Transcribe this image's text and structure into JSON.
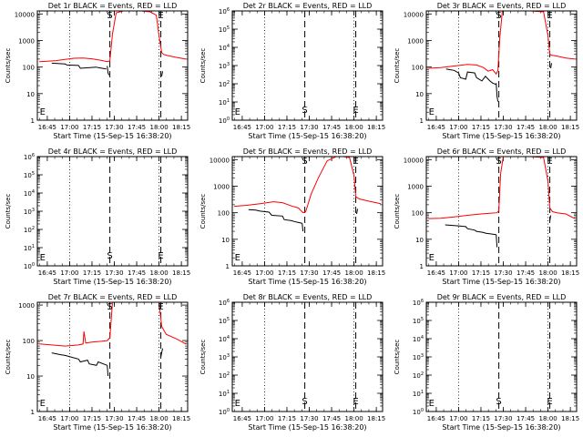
{
  "colors": {
    "events": "#000000",
    "lld": "#ff0000",
    "axes": "#000000",
    "background": "#ffffff"
  },
  "xlabel": "Start Time (15-Sep-15 16:38:20)",
  "ylabel": "Counts/sec",
  "chart_data": [
    {
      "type": "line",
      "title": "Det 1r BLACK = Events, RED = LLD",
      "log_scale": true,
      "ylim": [
        1,
        13000
      ],
      "y_tick_labels": [
        "1",
        "10",
        "100",
        "1000",
        "10000"
      ],
      "y_tick_values": [
        1,
        10,
        100,
        1000,
        10000
      ],
      "x_tick_labels": [
        "16:45",
        "17:00",
        "17:15",
        "17:30",
        "17:45",
        "18:00",
        "18:15"
      ],
      "x_tick_values": [
        16.75,
        17.0,
        17.25,
        17.5,
        17.75,
        18.0,
        18.25
      ],
      "xlim": [
        16.639,
        18.32
      ],
      "dotted_vlines": [
        17.0,
        18.0
      ],
      "dashed_vlines": [
        17.45,
        18.02
      ],
      "markers": [
        {
          "text": "S",
          "x": 17.45
        },
        {
          "text": "E",
          "x": 18.02
        },
        {
          "text": "E",
          "x": 16.655
        }
      ],
      "series": [
        {
          "color": "#ff0000",
          "x": [
            16.66,
            16.75,
            16.85,
            16.95,
            17.05,
            17.15,
            17.25,
            17.35,
            17.42,
            17.45,
            17.48,
            17.52,
            17.6,
            17.7,
            17.8,
            17.9,
            17.97,
            18.0,
            18.03,
            18.05,
            18.1,
            18.2,
            18.3
          ],
          "y": [
            160,
            165,
            175,
            195,
            215,
            220,
            205,
            180,
            160,
            170,
            1800,
            11000,
            13000,
            13000,
            13000,
            12000,
            9000,
            1500,
            350,
            300,
            270,
            230,
            200
          ]
        },
        {
          "color": "#000000",
          "x": [
            16.8,
            16.95,
            16.97,
            17.1,
            17.12,
            17.3,
            17.32,
            17.41
          ],
          "y": [
            140,
            130,
            120,
            115,
            90,
            100,
            95,
            85
          ]
        },
        {
          "color": "#000000",
          "x": [
            17.42,
            17.43,
            17.44
          ],
          "y": [
            110,
            60,
            50
          ]
        },
        {
          "color": "#000000",
          "x": [
            18.03,
            18.04
          ],
          "y": [
            45,
            70
          ]
        }
      ]
    },
    {
      "type": "line",
      "title": "Det 2r BLACK = Events, RED = LLD",
      "log_scale": true,
      "ylim": [
        1,
        1000000
      ],
      "y_tick_labels": [
        "10^0",
        "10^1",
        "10^2",
        "10^3",
        "10^4",
        "10^5",
        "10^6"
      ],
      "y_tick_values": [
        1,
        10,
        100,
        1000,
        10000,
        100000,
        1000000
      ],
      "x_tick_labels": [
        "16:45",
        "17:00",
        "17:15",
        "17:30",
        "17:45",
        "18:00",
        "18:15"
      ],
      "x_tick_values": [
        16.75,
        17.0,
        17.25,
        17.5,
        17.75,
        18.0,
        18.25
      ],
      "xlim": [
        16.639,
        18.32
      ],
      "dotted_vlines": [
        17.0,
        18.0
      ],
      "dashed_vlines": [
        17.45,
        18.02
      ],
      "markers": [
        {
          "text": "S",
          "x": 17.45
        },
        {
          "text": "E",
          "x": 18.02
        },
        {
          "text": "E",
          "x": 16.655
        }
      ],
      "series": []
    },
    {
      "type": "line",
      "title": "Det 3r BLACK = Events, RED = LLD",
      "log_scale": true,
      "ylim": [
        1,
        13000
      ],
      "y_tick_labels": [
        "1",
        "10",
        "100",
        "1000",
        "10000"
      ],
      "y_tick_values": [
        1,
        10,
        100,
        1000,
        10000
      ],
      "x_tick_labels": [
        "16:45",
        "17:00",
        "17:15",
        "17:30",
        "17:45",
        "18:00",
        "18:15"
      ],
      "x_tick_values": [
        16.75,
        17.0,
        17.25,
        17.5,
        17.75,
        18.0,
        18.25
      ],
      "xlim": [
        16.639,
        18.32
      ],
      "dotted_vlines": [
        17.0,
        18.0
      ],
      "dashed_vlines": [
        17.45,
        18.02
      ],
      "markers": [
        {
          "text": "S",
          "x": 17.45
        },
        {
          "text": "E",
          "x": 18.02
        },
        {
          "text": "E",
          "x": 16.655
        }
      ],
      "series": [
        {
          "color": "#ff0000",
          "x": [
            16.66,
            16.8,
            16.95,
            17.1,
            17.2,
            17.28,
            17.33,
            17.38,
            17.42,
            17.44,
            17.46,
            17.49,
            17.6,
            17.8,
            17.95,
            18.0,
            18.02,
            18.04,
            18.1,
            18.2,
            18.3
          ],
          "y": [
            90,
            95,
            110,
            125,
            120,
            95,
            70,
            80,
            55,
            75,
            1200,
            13000,
            13000,
            13000,
            12000,
            1500,
            300,
            280,
            260,
            220,
            200
          ]
        },
        {
          "color": "#000000",
          "x": [
            16.86,
            16.9,
            16.95,
            17.0,
            17.02,
            17.08,
            17.1,
            17.18,
            17.2,
            17.26,
            17.3,
            17.35,
            17.38,
            17.42
          ],
          "y": [
            85,
            80,
            75,
            60,
            40,
            35,
            65,
            60,
            40,
            30,
            45,
            30,
            25,
            22
          ]
        },
        {
          "color": "#000000",
          "x": [
            17.42,
            17.43,
            17.44
          ],
          "y": [
            25,
            8,
            5
          ]
        },
        {
          "color": "#000000",
          "x": [
            18.03,
            18.04
          ],
          "y": [
            90,
            140
          ]
        }
      ]
    },
    {
      "type": "line",
      "title": "Det 4r BLACK = Events, RED = LLD",
      "log_scale": true,
      "ylim": [
        1,
        1000000
      ],
      "y_tick_labels": [
        "10^0",
        "10^1",
        "10^2",
        "10^3",
        "10^4",
        "10^5",
        "10^6"
      ],
      "y_tick_values": [
        1,
        10,
        100,
        1000,
        10000,
        100000,
        1000000
      ],
      "x_tick_labels": [
        "16:45",
        "17:00",
        "17:15",
        "17:30",
        "17:45",
        "18:00",
        "18:15"
      ],
      "x_tick_values": [
        16.75,
        17.0,
        17.25,
        17.5,
        17.75,
        18.0,
        18.25
      ],
      "xlim": [
        16.639,
        18.32
      ],
      "dotted_vlines": [
        17.0,
        18.0
      ],
      "dashed_vlines": [
        17.45,
        18.02
      ],
      "markers": [
        {
          "text": "S",
          "x": 17.45
        },
        {
          "text": "E",
          "x": 18.02
        },
        {
          "text": "E",
          "x": 16.655
        }
      ],
      "series": []
    },
    {
      "type": "line",
      "title": "Det 5r BLACK = Events, RED = LLD",
      "log_scale": true,
      "ylim": [
        1,
        13000
      ],
      "y_tick_labels": [
        "1",
        "10",
        "100",
        "1000",
        "10000"
      ],
      "y_tick_values": [
        1,
        10,
        100,
        1000,
        10000
      ],
      "x_tick_labels": [
        "16:45",
        "17:00",
        "17:15",
        "17:30",
        "17:45",
        "18:00",
        "18:15"
      ],
      "x_tick_values": [
        16.75,
        17.0,
        17.25,
        17.5,
        17.75,
        18.0,
        18.25
      ],
      "xlim": [
        16.639,
        18.32
      ],
      "dotted_vlines": [
        17.0,
        18.0
      ],
      "dashed_vlines": [
        17.45,
        18.02
      ],
      "markers": [
        {
          "text": "S",
          "x": 17.45
        },
        {
          "text": "E",
          "x": 18.02
        },
        {
          "text": "E",
          "x": 16.655
        }
      ],
      "series": [
        {
          "color": "#ff0000",
          "x": [
            16.66,
            16.8,
            16.95,
            17.1,
            17.2,
            17.3,
            17.38,
            17.43,
            17.46,
            17.52,
            17.6,
            17.7,
            17.8,
            17.88,
            17.95,
            18.0,
            18.02,
            18.06,
            18.15,
            18.3
          ],
          "y": [
            175,
            190,
            220,
            260,
            240,
            180,
            150,
            100,
            110,
            500,
            2000,
            9000,
            13000,
            13000,
            12000,
            2500,
            400,
            330,
            280,
            220
          ]
        },
        {
          "color": "#000000",
          "x": [
            16.82,
            16.9,
            16.95,
            17.05,
            17.08,
            17.2,
            17.22,
            17.3,
            17.35,
            17.42
          ],
          "y": [
            130,
            125,
            115,
            105,
            80,
            75,
            55,
            50,
            45,
            40
          ]
        },
        {
          "color": "#000000",
          "x": [
            17.42,
            17.43
          ],
          "y": [
            40,
            20
          ]
        },
        {
          "color": "#000000",
          "x": [
            18.03,
            18.04
          ],
          "y": [
            90,
            140
          ]
        }
      ]
    },
    {
      "type": "line",
      "title": "Det 6r BLACK = Events, RED = LLD",
      "log_scale": true,
      "ylim": [
        1,
        13000
      ],
      "y_tick_labels": [
        "1",
        "10",
        "100",
        "1000",
        "10000"
      ],
      "y_tick_values": [
        1,
        10,
        100,
        1000,
        10000
      ],
      "x_tick_labels": [
        "16:45",
        "17:00",
        "17:15",
        "17:30",
        "17:45",
        "18:00",
        "18:15"
      ],
      "x_tick_values": [
        16.75,
        17.0,
        17.25,
        17.5,
        17.75,
        18.0,
        18.25
      ],
      "xlim": [
        16.639,
        18.32
      ],
      "dotted_vlines": [
        17.0,
        18.0
      ],
      "dashed_vlines": [
        17.45,
        18.02
      ],
      "markers": [
        {
          "text": "S",
          "x": 17.45
        },
        {
          "text": "E",
          "x": 18.02
        },
        {
          "text": "E",
          "x": 16.655
        }
      ],
      "series": [
        {
          "color": "#ff0000",
          "x": [
            16.66,
            16.8,
            16.95,
            17.1,
            17.25,
            17.35,
            17.43,
            17.45,
            17.47,
            17.5,
            17.6,
            17.8,
            17.95,
            18.0,
            18.02,
            18.05,
            18.1,
            18.2,
            18.3
          ],
          "y": [
            60,
            62,
            70,
            80,
            90,
            95,
            100,
            120,
            3000,
            13000,
            13000,
            13000,
            12000,
            1500,
            150,
            110,
            100,
            90,
            60
          ]
        },
        {
          "color": "#000000",
          "x": [
            16.85,
            16.95,
            17.0,
            17.08,
            17.1,
            17.18,
            17.2,
            17.28,
            17.3,
            17.42
          ],
          "y": [
            35,
            33,
            32,
            30,
            25,
            22,
            20,
            18,
            17,
            15
          ]
        },
        {
          "color": "#000000",
          "x": [
            17.42,
            17.43
          ],
          "y": [
            15,
            5
          ]
        },
        {
          "color": "#000000",
          "x": [
            18.02,
            18.03
          ],
          "y": [
            50,
            80
          ]
        }
      ]
    },
    {
      "type": "line",
      "title": "Det 7r BLACK = Events, RED = LLD",
      "log_scale": true,
      "ylim": [
        1,
        1200
      ],
      "y_tick_labels": [
        "1",
        "10",
        "100",
        "1000"
      ],
      "y_tick_values": [
        1,
        10,
        100,
        1000
      ],
      "x_tick_labels": [
        "16:45",
        "17:00",
        "17:15",
        "17:30",
        "17:45",
        "18:00",
        "18:15"
      ],
      "x_tick_values": [
        16.75,
        17.0,
        17.25,
        17.5,
        17.75,
        18.0,
        18.25
      ],
      "xlim": [
        16.639,
        18.32
      ],
      "dotted_vlines": [
        17.0,
        18.0
      ],
      "dashed_vlines": [
        17.45,
        18.02
      ],
      "markers": [
        {
          "text": "S",
          "x": 17.45
        },
        {
          "text": "E",
          "x": 18.02
        },
        {
          "text": "E",
          "x": 16.655
        }
      ],
      "series": [
        {
          "color": "#ff0000",
          "x": [
            16.66,
            16.8,
            16.95,
            17.1,
            17.15,
            17.16,
            17.18,
            17.25,
            17.35,
            17.42,
            17.45,
            17.48,
            17.55,
            17.7,
            17.85,
            17.95,
            18.0,
            18.03,
            18.08,
            18.2,
            18.3
          ],
          "y": [
            80,
            75,
            70,
            75,
            80,
            180,
            85,
            90,
            95,
            100,
            120,
            1200,
            1200,
            1200,
            1200,
            1200,
            1200,
            250,
            150,
            110,
            80
          ]
        },
        {
          "color": "#000000",
          "x": [
            16.8,
            16.9,
            16.95,
            17.1,
            17.12,
            17.2,
            17.22,
            17.3,
            17.32,
            17.42
          ],
          "y": [
            45,
            40,
            38,
            30,
            25,
            28,
            22,
            20,
            25,
            20
          ]
        },
        {
          "color": "#000000",
          "x": [
            17.42,
            17.43
          ],
          "y": [
            20,
            10
          ]
        },
        {
          "color": "#000000",
          "x": [
            18.02,
            18.04
          ],
          "y": [
            35,
            60
          ]
        }
      ]
    },
    {
      "type": "line",
      "title": "Det 8r BLACK = Events, RED = LLD",
      "log_scale": true,
      "ylim": [
        1,
        1000000
      ],
      "y_tick_labels": [
        "10^0",
        "10^1",
        "10^2",
        "10^3",
        "10^4",
        "10^5",
        "10^6"
      ],
      "y_tick_values": [
        1,
        10,
        100,
        1000,
        10000,
        100000,
        1000000
      ],
      "x_tick_labels": [
        "16:45",
        "17:00",
        "17:15",
        "17:30",
        "17:45",
        "18:00",
        "18:15"
      ],
      "x_tick_values": [
        16.75,
        17.0,
        17.25,
        17.5,
        17.75,
        18.0,
        18.25
      ],
      "xlim": [
        16.639,
        18.32
      ],
      "dotted_vlines": [
        17.0,
        18.0
      ],
      "dashed_vlines": [
        17.45,
        18.02
      ],
      "markers": [
        {
          "text": "S",
          "x": 17.45
        },
        {
          "text": "E",
          "x": 18.02
        },
        {
          "text": "E",
          "x": 16.655
        }
      ],
      "series": []
    },
    {
      "type": "line",
      "title": "Det 9r BLACK = Events, RED = LLD",
      "log_scale": true,
      "ylim": [
        1,
        1000000
      ],
      "y_tick_labels": [
        "10^0",
        "10^1",
        "10^2",
        "10^3",
        "10^4",
        "10^5",
        "10^6"
      ],
      "y_tick_values": [
        1,
        10,
        100,
        1000,
        10000,
        100000,
        1000000
      ],
      "x_tick_labels": [
        "16:45",
        "17:00",
        "17:15",
        "17:30",
        "17:45",
        "18:00",
        "18:15"
      ],
      "x_tick_values": [
        16.75,
        17.0,
        17.25,
        17.5,
        17.75,
        18.0,
        18.25
      ],
      "xlim": [
        16.639,
        18.32
      ],
      "dotted_vlines": [
        17.0,
        18.0
      ],
      "dashed_vlines": [
        17.45,
        18.02
      ],
      "markers": [
        {
          "text": "S",
          "x": 17.45
        },
        {
          "text": "E",
          "x": 18.02
        },
        {
          "text": "E",
          "x": 16.655
        }
      ],
      "series": []
    }
  ]
}
